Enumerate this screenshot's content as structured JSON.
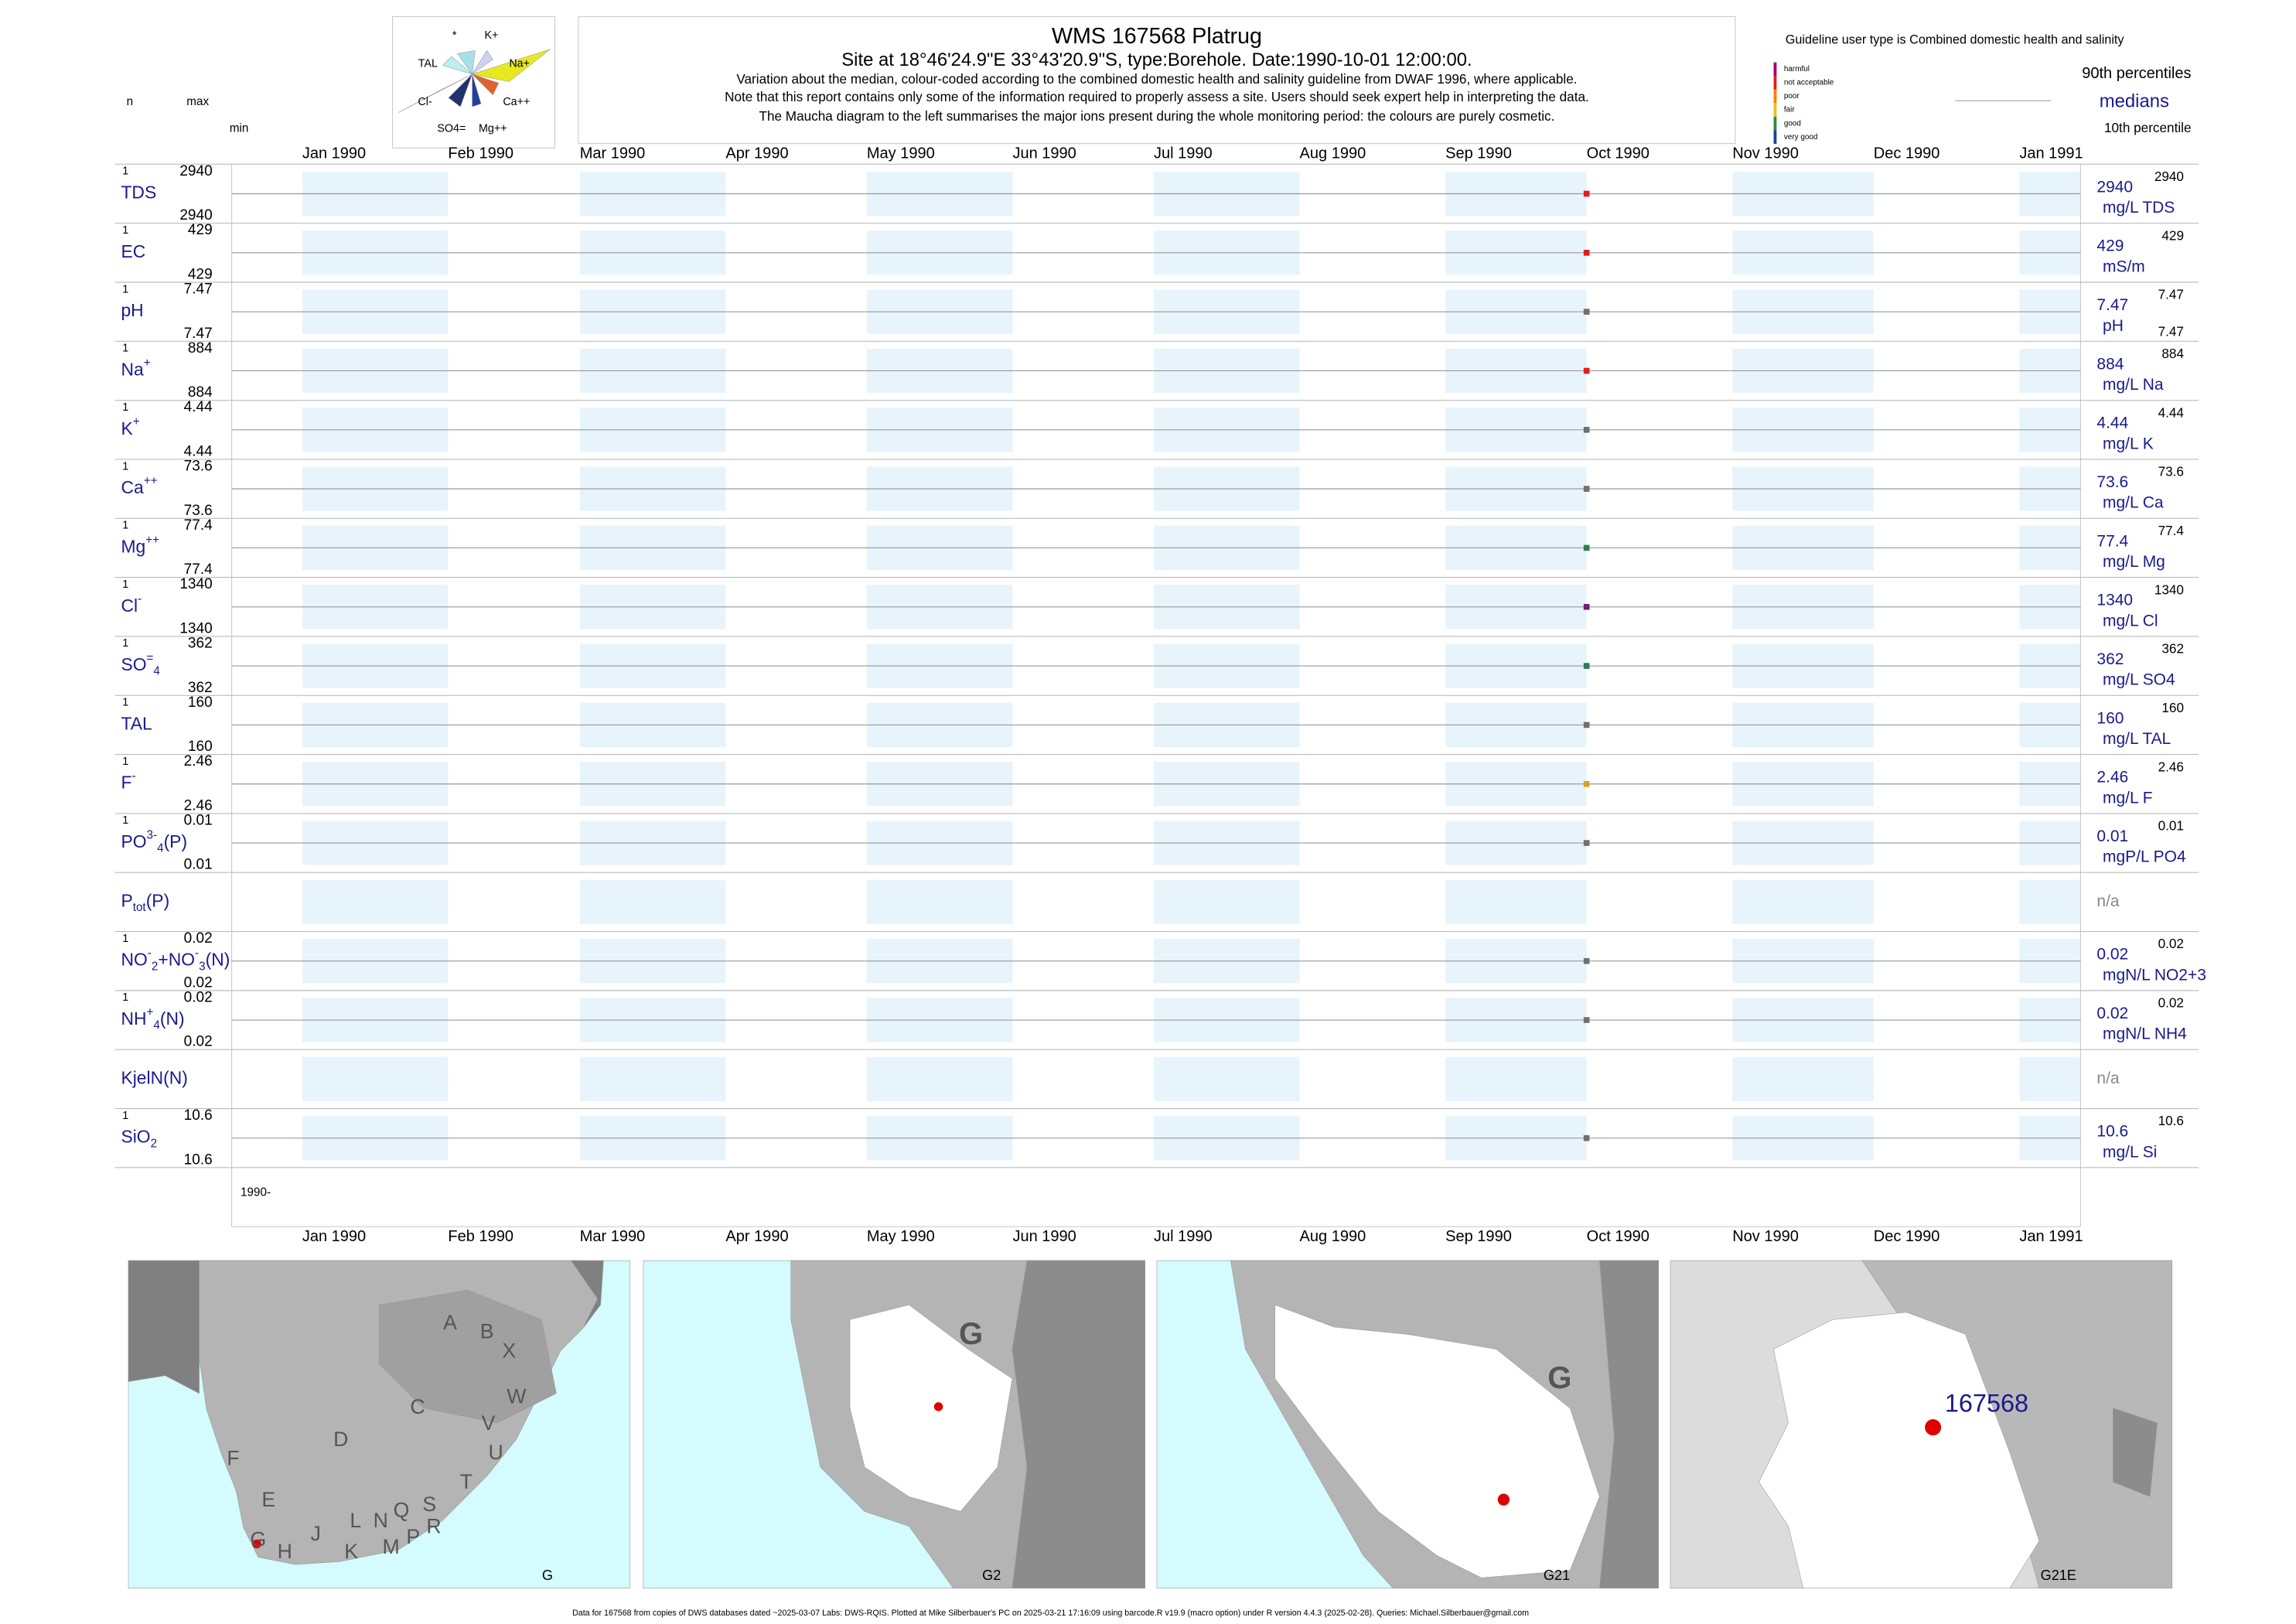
{
  "header": {
    "title": "WMS 167568  Platrug",
    "site": "Site at 18°46'24.9\"E 33°43'20.9\"S, type:Borehole. Date:1990-10-01 12:00:00.",
    "notes": [
      "Variation about the median,  colour-coded according to the combined domestic health and salinity guideline from DWAF 1996, where applicable.",
      "Note that this report contains only some of the information required to properly assess a site. Users should seek expert help in interpreting the data.",
      "The Maucha diagram to the left summarises the major ions present during the whole monitoring period: the colours are purely cosmetic."
    ],
    "guideline_text": "Guideline user type is Combined domestic health and salinity",
    "guideline_levels": [
      {
        "label": "harmful",
        "color": "#a0006e"
      },
      {
        "label": "not acceptable",
        "color": "#e41a1c"
      },
      {
        "label": "poor",
        "color": "#ff7f00"
      },
      {
        "label": "fair",
        "color": "#e6c619"
      },
      {
        "label": "good",
        "color": "#2e8b3e"
      },
      {
        "label": "very good",
        "color": "#1f3fa0"
      }
    ],
    "p90_label": "90th percentiles",
    "median_label": "medians",
    "p10_label": "10th percentile",
    "n_label": "n",
    "max_label": "max",
    "min_label": "min"
  },
  "maucha": {
    "labels": [
      "*",
      "K+",
      "TAL",
      "Na+",
      "Cl-",
      "Ca++",
      "SO4=",
      "Mg++"
    ]
  },
  "chart": {
    "xlim": [
      "1989-12-17",
      "1991-01-14"
    ],
    "months": [
      {
        "value": "1990-01-01",
        "label": "Jan 1990"
      },
      {
        "value": "1990-02-01",
        "label": "Feb 1990"
      },
      {
        "value": "1990-03-01",
        "label": "Mar 1990"
      },
      {
        "value": "1990-04-01",
        "label": "Apr 1990"
      },
      {
        "value": "1990-05-01",
        "label": "May 1990"
      },
      {
        "value": "1990-06-01",
        "label": "Jun 1990"
      },
      {
        "value": "1990-07-01",
        "label": "Jul 1990"
      },
      {
        "value": "1990-08-01",
        "label": "Aug 1990"
      },
      {
        "value": "1990-09-01",
        "label": "Sep 1990"
      },
      {
        "value": "1990-10-01",
        "label": "Oct 1990"
      },
      {
        "value": "1990-11-01",
        "label": "Nov 1990"
      },
      {
        "value": "1990-12-01",
        "label": "Dec 1990"
      },
      {
        "value": "1991-01-01",
        "label": "Jan 1991"
      }
    ],
    "band_color": "#e8f4fc",
    "year_label": "1990-",
    "sample_date": "1990-10-01",
    "rows": [
      {
        "label": [
          {
            "text": "TDS",
            "pos": "base"
          }
        ],
        "n": 1,
        "max": 2940,
        "min": 2940,
        "value": 2940,
        "color": "#e41a1c",
        "unit": "mg/L TDS",
        "p90": 2940
      },
      {
        "label": [
          {
            "text": "EC",
            "pos": "base"
          }
        ],
        "n": 1,
        "max": 429,
        "min": 429,
        "value": 429,
        "color": "#e41a1c",
        "unit": "mS/m",
        "p90": 429
      },
      {
        "label": [
          {
            "text": "pH",
            "pos": "base"
          }
        ],
        "n": 1,
        "max": 7.47,
        "min": 7.47,
        "value": 7.47,
        "color": "#707070",
        "unit": "pH",
        "p90": 7.47,
        "p10": 7.47
      },
      {
        "label": [
          {
            "text": "Na",
            "pos": "base"
          },
          {
            "text": "+",
            "pos": "sup"
          }
        ],
        "n": 1,
        "max": 884,
        "min": 884,
        "value": 884,
        "color": "#e41a1c",
        "unit": "mg/L Na",
        "p90": 884
      },
      {
        "label": [
          {
            "text": "K",
            "pos": "base"
          },
          {
            "text": "+",
            "pos": "sup"
          }
        ],
        "n": 1,
        "max": 4.44,
        "min": 4.44,
        "value": 4.44,
        "color": "#707070",
        "unit": "mg/L K",
        "p90": 4.44
      },
      {
        "label": [
          {
            "text": "Ca",
            "pos": "base"
          },
          {
            "text": "++",
            "pos": "sup"
          }
        ],
        "n": 1,
        "max": 73.6,
        "min": 73.6,
        "value": 73.6,
        "color": "#707070",
        "unit": "mg/L Ca",
        "p90": 73.6
      },
      {
        "label": [
          {
            "text": "Mg",
            "pos": "base"
          },
          {
            "text": "++",
            "pos": "sup"
          }
        ],
        "n": 1,
        "max": 77.4,
        "min": 77.4,
        "value": 77.4,
        "color": "#2e7d4f",
        "unit": "mg/L Mg",
        "p90": 77.4
      },
      {
        "label": [
          {
            "text": "Cl",
            "pos": "base"
          },
          {
            "text": "-",
            "pos": "sup"
          }
        ],
        "n": 1,
        "max": 1340,
        "min": 1340,
        "value": 1340,
        "color": "#7b1a6e",
        "unit": "mg/L Cl",
        "p90": 1340
      },
      {
        "label": [
          {
            "text": "SO",
            "pos": "base"
          },
          {
            "text": "=",
            "pos": "sup"
          },
          {
            "text": "4",
            "pos": "sub"
          }
        ],
        "n": 1,
        "max": 362,
        "min": 362,
        "value": 362,
        "color": "#2e7d4f",
        "unit": "mg/L SO4",
        "p90": 362
      },
      {
        "label": [
          {
            "text": "TAL",
            "pos": "base"
          }
        ],
        "n": 1,
        "max": 160,
        "min": 160,
        "value": 160,
        "color": "#707070",
        "unit": "mg/L TAL",
        "p90": 160
      },
      {
        "label": [
          {
            "text": "F",
            "pos": "base"
          },
          {
            "text": "-",
            "pos": "sup"
          }
        ],
        "n": 1,
        "max": 2.46,
        "min": 2.46,
        "value": 2.46,
        "color": "#d9a020",
        "unit": "mg/L F",
        "p90": 2.46
      },
      {
        "label": [
          {
            "text": "PO",
            "pos": "base"
          },
          {
            "text": "3-",
            "pos": "sup"
          },
          {
            "text": "4",
            "pos": "sub"
          },
          {
            "text": "(P)",
            "pos": "base"
          }
        ],
        "n": 1,
        "max": 0.01,
        "min": 0.01,
        "value": 0.01,
        "color": "#707070",
        "unit": "mgP/L PO4",
        "p90": 0.01
      },
      {
        "label": [
          {
            "text": "P",
            "pos": "base"
          },
          {
            "text": "tot",
            "pos": "sub"
          },
          {
            "text": "(P)",
            "pos": "base"
          }
        ],
        "na": "n/a"
      },
      {
        "label": [
          {
            "text": "NO",
            "pos": "base"
          },
          {
            "text": "-",
            "pos": "sup"
          },
          {
            "text": "2",
            "pos": "sub"
          },
          {
            "text": "+NO",
            "pos": "base"
          },
          {
            "text": "-",
            "pos": "sup"
          },
          {
            "text": "3",
            "pos": "sub"
          },
          {
            "text": "(N)",
            "pos": "base"
          }
        ],
        "n": 1,
        "max": 0.02,
        "min": 0.02,
        "value": 0.02,
        "color": "#707070",
        "unit": "mgN/L NO2+3",
        "p90": 0.02
      },
      {
        "label": [
          {
            "text": "NH",
            "pos": "base"
          },
          {
            "text": "+",
            "pos": "sup"
          },
          {
            "text": "4",
            "pos": "sub"
          },
          {
            "text": "(N)",
            "pos": "base"
          }
        ],
        "n": 1,
        "max": 0.02,
        "min": 0.02,
        "value": 0.02,
        "color": "#707070",
        "unit": "mgN/L NH4",
        "p90": 0.02
      },
      {
        "label": [
          {
            "text": "KjelN(N)",
            "pos": "base"
          }
        ],
        "na": "n/a"
      },
      {
        "label": [
          {
            "text": "SiO",
            "pos": "base"
          },
          {
            "text": "2",
            "pos": "sub"
          }
        ],
        "n": 1,
        "max": 10.6,
        "min": 10.6,
        "value": 10.6,
        "color": "#707070",
        "unit": "mg/L Si",
        "p90": 10.6
      }
    ]
  },
  "maps": [
    {
      "caption": "G",
      "labels": [
        "A",
        "B",
        "X",
        "W",
        "C",
        "V",
        "U",
        "D",
        "F",
        "T",
        "E",
        "S",
        "R",
        "Q",
        "N",
        "L",
        "P",
        "M",
        "K",
        "J",
        "H",
        "G"
      ]
    },
    {
      "caption": "G2",
      "labels": [
        "G"
      ]
    },
    {
      "caption": "G21",
      "labels": [
        "G"
      ]
    },
    {
      "caption": "G21E",
      "labels": [
        "167568"
      ]
    }
  ],
  "footer": "Data for 167568 from copies of DWS databases dated ~2025-03-07 Labs: DWS-RQIS. Plotted at Mike Silberbauer's PC on 2025-03-21 17:16:09 using barcode.R v19.9 (macro option) under R version 4.4.3 (2025-02-28). Queries: Michael.Silberbauer@gmail.com"
}
